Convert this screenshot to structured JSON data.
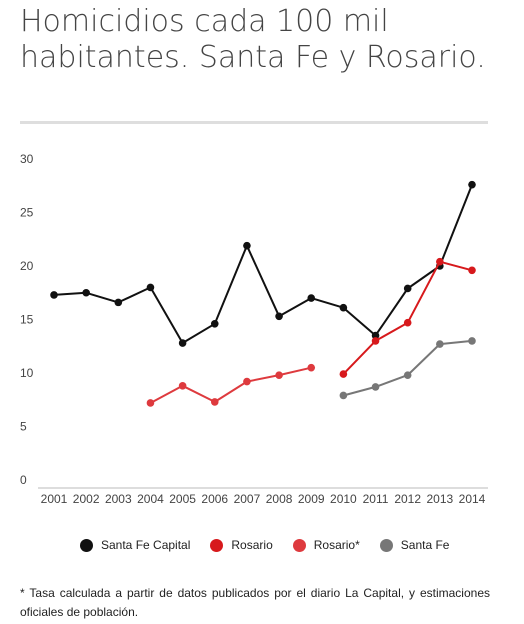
{
  "title": "Homicidios cada 100 mil habitantes. Santa Fe y Rosario.",
  "footnote": "* Tasa calculada a partir de datos publicados por el diario La Capital, y estimaciones oficiales de población.",
  "chart_data": {
    "type": "line",
    "title": "Homicidios cada 100 mil habitantes. Santa Fe y Rosario.",
    "xlabel": "",
    "ylabel": "",
    "x": [
      2001,
      2002,
      2003,
      2004,
      2005,
      2006,
      2007,
      2008,
      2009,
      2010,
      2011,
      2012,
      2013,
      2014
    ],
    "ylim": [
      0,
      30
    ],
    "yticks": [
      0,
      5,
      10,
      15,
      20,
      25,
      30
    ],
    "grid": false,
    "legend_position": "bottom",
    "series": [
      {
        "name": "Santa Fe Capital",
        "color": "#111111",
        "points": [
          [
            2001,
            17.3
          ],
          [
            2002,
            17.5
          ],
          [
            2003,
            16.6
          ],
          [
            2004,
            18.0
          ],
          [
            2005,
            12.8
          ],
          [
            2006,
            14.6
          ],
          [
            2007,
            21.9
          ],
          [
            2008,
            15.3
          ],
          [
            2009,
            17.0
          ],
          [
            2010,
            16.1
          ],
          [
            2011,
            13.5
          ],
          [
            2012,
            17.9
          ],
          [
            2013,
            20.0
          ],
          [
            2014,
            27.6
          ]
        ]
      },
      {
        "name": "Rosario",
        "color": "#d7191c",
        "points": [
          [
            2010,
            9.9
          ],
          [
            2011,
            13.0
          ],
          [
            2012,
            14.7
          ],
          [
            2013,
            20.4
          ],
          [
            2014,
            19.6
          ]
        ]
      },
      {
        "name": "Rosario*",
        "color": "#de3a3e",
        "points": [
          [
            2004,
            7.2
          ],
          [
            2005,
            8.8
          ],
          [
            2006,
            7.3
          ],
          [
            2007,
            9.2
          ],
          [
            2008,
            9.8
          ],
          [
            2009,
            10.5
          ]
        ]
      },
      {
        "name": "Santa Fe",
        "color": "#777777",
        "points": [
          [
            2010,
            7.9
          ],
          [
            2011,
            8.7
          ],
          [
            2012,
            9.8
          ],
          [
            2013,
            12.7
          ],
          [
            2014,
            13.0
          ]
        ]
      }
    ]
  }
}
